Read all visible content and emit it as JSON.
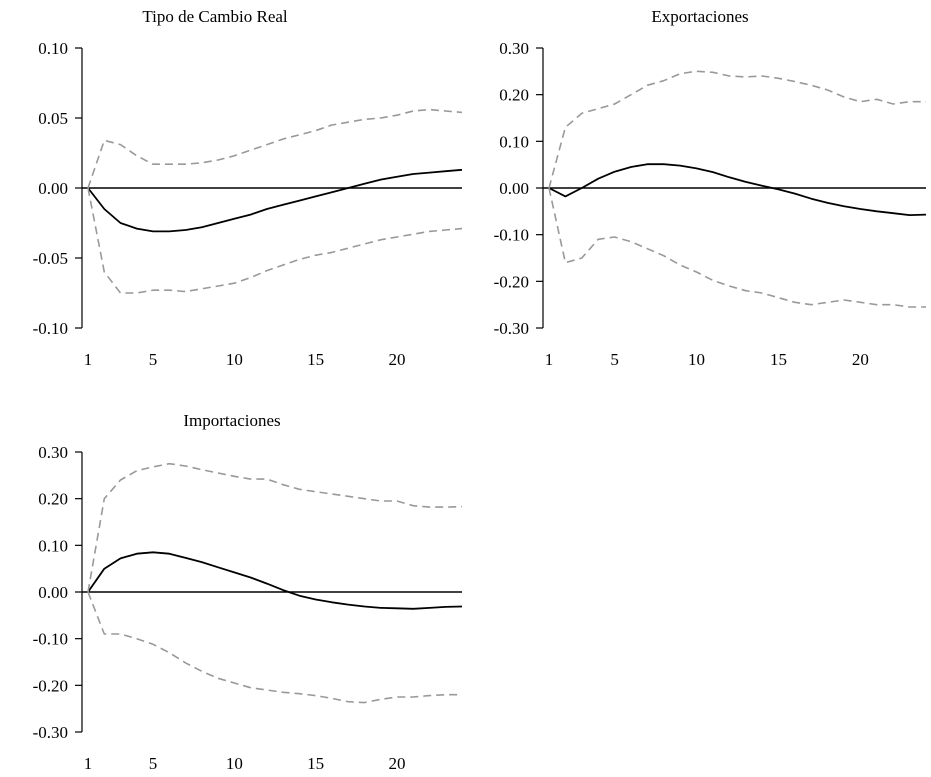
{
  "chart_data": [
    {
      "type": "line",
      "title": "Tipo de Cambio Real",
      "xlabel": "",
      "ylabel": "",
      "xlim": [
        1,
        24
      ],
      "ylim": [
        -0.1,
        0.1
      ],
      "x_ticks": [
        1,
        5,
        10,
        15,
        20
      ],
      "x_tick_labels": [
        "1",
        "5",
        "10",
        "15",
        "20"
      ],
      "y_ticks": [
        0.1,
        0.05,
        0.0,
        -0.05,
        -0.1
      ],
      "y_tick_labels": [
        "0.10",
        "0.05",
        "0.00",
        "-0.05",
        "-0.10"
      ],
      "grid": false,
      "legend": "none",
      "zero_line": true,
      "x": [
        1,
        2,
        3,
        4,
        5,
        6,
        7,
        8,
        9,
        10,
        11,
        12,
        13,
        14,
        15,
        16,
        17,
        18,
        19,
        20,
        21,
        22,
        23,
        24
      ],
      "series": [
        {
          "style": "solid",
          "color": "#000000",
          "values": [
            0.0,
            -0.015,
            -0.025,
            -0.029,
            -0.031,
            -0.031,
            -0.03,
            -0.028,
            -0.025,
            -0.022,
            -0.019,
            -0.015,
            -0.012,
            -0.009,
            -0.006,
            -0.003,
            0.0,
            0.003,
            0.006,
            0.008,
            0.01,
            0.011,
            0.012,
            0.013
          ]
        },
        {
          "style": "dashed",
          "color": "#999999",
          "values": [
            0.0,
            0.034,
            0.031,
            0.023,
            0.017,
            0.017,
            0.017,
            0.018,
            0.02,
            0.023,
            0.027,
            0.031,
            0.035,
            0.038,
            0.041,
            0.045,
            0.047,
            0.049,
            0.05,
            0.052,
            0.055,
            0.056,
            0.055,
            0.054
          ]
        },
        {
          "style": "dashed",
          "color": "#999999",
          "values": [
            0.0,
            -0.06,
            -0.075,
            -0.075,
            -0.073,
            -0.073,
            -0.074,
            -0.072,
            -0.07,
            -0.068,
            -0.064,
            -0.059,
            -0.055,
            -0.051,
            -0.048,
            -0.046,
            -0.043,
            -0.04,
            -0.037,
            -0.035,
            -0.033,
            -0.031,
            -0.03,
            -0.029
          ]
        }
      ]
    },
    {
      "type": "line",
      "title": "Exportaciones",
      "xlabel": "",
      "ylabel": "",
      "xlim": [
        1,
        24
      ],
      "ylim": [
        -0.3,
        0.3
      ],
      "x_ticks": [
        1,
        5,
        10,
        15,
        20
      ],
      "x_tick_labels": [
        "1",
        "5",
        "10",
        "15",
        "20"
      ],
      "y_ticks": [
        0.3,
        0.2,
        0.1,
        0.0,
        -0.1,
        -0.2,
        -0.3
      ],
      "y_tick_labels": [
        "0.30",
        "0.20",
        "0.10",
        "0.00",
        "-0.10",
        "-0.20",
        "-0.30"
      ],
      "grid": false,
      "legend": "none",
      "zero_line": true,
      "x": [
        1,
        2,
        3,
        4,
        5,
        6,
        7,
        8,
        9,
        10,
        11,
        12,
        13,
        14,
        15,
        16,
        17,
        18,
        19,
        20,
        21,
        22,
        23,
        24
      ],
      "series": [
        {
          "style": "solid",
          "color": "#000000",
          "values": [
            0.0,
            -0.018,
            0.0,
            0.02,
            0.035,
            0.045,
            0.051,
            0.051,
            0.048,
            0.042,
            0.034,
            0.023,
            0.013,
            0.005,
            -0.003,
            -0.012,
            -0.023,
            -0.032,
            -0.039,
            -0.045,
            -0.05,
            -0.054,
            -0.058,
            -0.057
          ]
        },
        {
          "style": "dashed",
          "color": "#999999",
          "values": [
            0.0,
            0.13,
            0.16,
            0.17,
            0.18,
            0.2,
            0.22,
            0.23,
            0.245,
            0.25,
            0.248,
            0.24,
            0.238,
            0.24,
            0.235,
            0.228,
            0.22,
            0.21,
            0.195,
            0.185,
            0.19,
            0.18,
            0.185,
            0.185
          ]
        },
        {
          "style": "dashed",
          "color": "#999999",
          "values": [
            0.0,
            -0.16,
            -0.15,
            -0.11,
            -0.105,
            -0.115,
            -0.13,
            -0.145,
            -0.165,
            -0.18,
            -0.198,
            -0.21,
            -0.22,
            -0.225,
            -0.235,
            -0.245,
            -0.25,
            -0.245,
            -0.24,
            -0.245,
            -0.25,
            -0.25,
            -0.255,
            -0.255
          ]
        }
      ]
    },
    {
      "type": "line",
      "title": "Importaciones",
      "xlabel": "",
      "ylabel": "",
      "xlim": [
        1,
        24
      ],
      "ylim": [
        -0.3,
        0.3
      ],
      "x_ticks": [
        1,
        5,
        10,
        15,
        20
      ],
      "x_tick_labels": [
        "1",
        "5",
        "10",
        "15",
        "20"
      ],
      "y_ticks": [
        0.3,
        0.2,
        0.1,
        0.0,
        -0.1,
        -0.2,
        -0.3
      ],
      "y_tick_labels": [
        "0.30",
        "0.20",
        "0.10",
        "0.00",
        "-0.10",
        "-0.20",
        "-0.30"
      ],
      "grid": false,
      "legend": "none",
      "zero_line": true,
      "x": [
        1,
        2,
        3,
        4,
        5,
        6,
        7,
        8,
        9,
        10,
        11,
        12,
        13,
        14,
        15,
        16,
        17,
        18,
        19,
        20,
        21,
        22,
        23,
        24
      ],
      "series": [
        {
          "style": "solid",
          "color": "#000000",
          "values": [
            0.0,
            0.05,
            0.072,
            0.082,
            0.085,
            0.082,
            0.073,
            0.064,
            0.053,
            0.042,
            0.031,
            0.018,
            0.004,
            -0.008,
            -0.016,
            -0.022,
            -0.027,
            -0.031,
            -0.034,
            -0.035,
            -0.036,
            -0.034,
            -0.032,
            -0.031
          ]
        },
        {
          "style": "dashed",
          "color": "#999999",
          "values": [
            0.0,
            0.2,
            0.24,
            0.26,
            0.268,
            0.275,
            0.27,
            0.262,
            0.255,
            0.248,
            0.242,
            0.242,
            0.23,
            0.22,
            0.215,
            0.21,
            0.205,
            0.2,
            0.195,
            0.195,
            0.185,
            0.182,
            0.182,
            0.183
          ]
        },
        {
          "style": "dashed",
          "color": "#999999",
          "values": [
            0.0,
            -0.09,
            -0.09,
            -0.1,
            -0.112,
            -0.13,
            -0.152,
            -0.17,
            -0.185,
            -0.195,
            -0.205,
            -0.21,
            -0.215,
            -0.218,
            -0.222,
            -0.228,
            -0.235,
            -0.237,
            -0.23,
            -0.225,
            -0.225,
            -0.222,
            -0.22,
            -0.22
          ]
        }
      ]
    }
  ]
}
